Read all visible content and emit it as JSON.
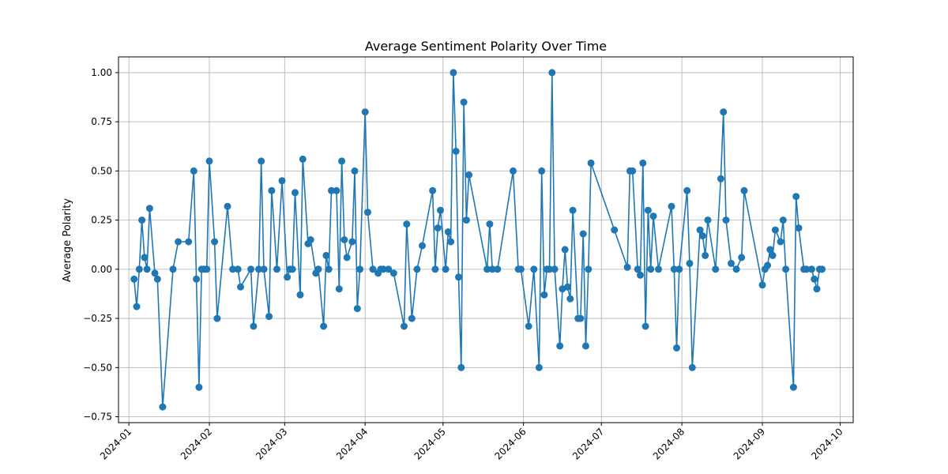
{
  "chart_data": {
    "type": "line",
    "title": "Average Sentiment Polarity Over Time",
    "xlabel": "",
    "ylabel": "Average Polarity",
    "xlim": [
      "2023-12-28",
      "2024-10-06"
    ],
    "ylim": [
      -0.78,
      1.08
    ],
    "x_ticks": [
      "2024-01",
      "2024-02",
      "2024-03",
      "2024-04",
      "2024-05",
      "2024-06",
      "2024-07",
      "2024-08",
      "2024-09",
      "2024-10"
    ],
    "y_ticks": [
      -0.75,
      -0.5,
      -0.25,
      0.0,
      0.25,
      0.5,
      0.75,
      1.0
    ],
    "y_tick_labels": [
      "−0.75",
      "−0.50",
      "−0.25",
      "0.00",
      "0.25",
      "0.50",
      "0.75",
      "1.00"
    ],
    "grid": true,
    "marker": "circle",
    "color": "#1f77b4",
    "x": [
      "2024-01-03",
      "2024-01-04",
      "2024-01-05",
      "2024-01-06",
      "2024-01-07",
      "2024-01-08",
      "2024-01-09",
      "2024-01-11",
      "2024-01-12",
      "2024-01-14",
      "2024-01-18",
      "2024-01-20",
      "2024-01-24",
      "2024-01-26",
      "2024-01-27",
      "2024-01-28",
      "2024-01-29",
      "2024-01-30",
      "2024-01-31",
      "2024-02-01",
      "2024-02-03",
      "2024-02-04",
      "2024-02-08",
      "2024-02-10",
      "2024-02-12",
      "2024-02-13",
      "2024-02-17",
      "2024-02-18",
      "2024-02-20",
      "2024-02-21",
      "2024-02-22",
      "2024-02-24",
      "2024-02-25",
      "2024-02-27",
      "2024-02-29",
      "2024-03-02",
      "2024-03-03",
      "2024-03-04",
      "2024-03-05",
      "2024-03-07",
      "2024-03-08",
      "2024-03-10",
      "2024-03-11",
      "2024-03-13",
      "2024-03-14",
      "2024-03-16",
      "2024-03-17",
      "2024-03-18",
      "2024-03-19",
      "2024-03-21",
      "2024-03-22",
      "2024-03-23",
      "2024-03-24",
      "2024-03-25",
      "2024-03-27",
      "2024-03-28",
      "2024-03-29",
      "2024-03-30",
      "2024-04-01",
      "2024-04-02",
      "2024-04-04",
      "2024-04-06",
      "2024-04-07",
      "2024-04-08",
      "2024-04-10",
      "2024-04-12",
      "2024-04-16",
      "2024-04-17",
      "2024-04-19",
      "2024-04-21",
      "2024-04-23",
      "2024-04-27",
      "2024-04-28",
      "2024-04-29",
      "2024-04-30",
      "2024-05-02",
      "2024-05-03",
      "2024-05-04",
      "2024-05-05",
      "2024-05-06",
      "2024-05-07",
      "2024-05-08",
      "2024-05-09",
      "2024-05-10",
      "2024-05-11",
      "2024-05-18",
      "2024-05-19",
      "2024-05-20",
      "2024-05-22",
      "2024-05-28",
      "2024-05-30",
      "2024-05-31",
      "2024-06-03",
      "2024-06-05",
      "2024-06-07",
      "2024-06-08",
      "2024-06-09",
      "2024-06-10",
      "2024-06-11",
      "2024-06-12",
      "2024-06-13",
      "2024-06-15",
      "2024-06-16",
      "2024-06-17",
      "2024-06-18",
      "2024-06-19",
      "2024-06-20",
      "2024-06-22",
      "2024-06-23",
      "2024-06-24",
      "2024-06-25",
      "2024-06-26",
      "2024-06-27",
      "2024-07-06",
      "2024-07-11",
      "2024-07-12",
      "2024-07-13",
      "2024-07-15",
      "2024-07-16",
      "2024-07-17",
      "2024-07-18",
      "2024-07-19",
      "2024-07-20",
      "2024-07-21",
      "2024-07-23",
      "2024-07-28",
      "2024-07-29",
      "2024-07-30",
      "2024-07-31",
      "2024-08-03",
      "2024-08-04",
      "2024-08-05",
      "2024-08-08",
      "2024-08-09",
      "2024-08-10",
      "2024-08-11",
      "2024-08-14",
      "2024-08-16",
      "2024-08-17",
      "2024-08-18",
      "2024-08-20",
      "2024-08-22",
      "2024-08-24",
      "2024-08-25",
      "2024-09-01",
      "2024-09-02",
      "2024-09-03",
      "2024-09-04",
      "2024-09-05",
      "2024-09-06",
      "2024-09-08",
      "2024-09-09",
      "2024-09-10",
      "2024-09-13",
      "2024-09-14",
      "2024-09-15",
      "2024-09-17",
      "2024-09-18",
      "2024-09-20",
      "2024-09-21",
      "2024-09-22",
      "2024-09-23",
      "2024-09-24"
    ],
    "values": [
      -0.05,
      -0.19,
      0.0,
      0.25,
      0.06,
      0.0,
      0.31,
      -0.02,
      -0.05,
      -0.7,
      0.0,
      0.14,
      0.14,
      0.5,
      -0.05,
      -0.6,
      0.0,
      0.0,
      0.0,
      0.55,
      0.14,
      -0.25,
      0.32,
      0.0,
      0.0,
      -0.09,
      0.0,
      -0.29,
      0.0,
      0.55,
      0.0,
      -0.24,
      0.4,
      0.0,
      0.45,
      -0.04,
      0.0,
      0.0,
      0.39,
      -0.13,
      0.56,
      0.13,
      0.15,
      -0.02,
      0.0,
      -0.29,
      0.07,
      0.0,
      0.4,
      0.4,
      -0.1,
      0.55,
      0.15,
      0.06,
      0.14,
      0.5,
      -0.2,
      0.0,
      0.8,
      0.29,
      0.0,
      -0.02,
      0.0,
      0.0,
      0.0,
      -0.02,
      -0.29,
      0.23,
      -0.25,
      0.0,
      0.12,
      0.4,
      0.0,
      0.21,
      0.3,
      0.0,
      0.19,
      0.14,
      1.0,
      0.6,
      -0.04,
      -0.5,
      0.85,
      0.25,
      0.48,
      0.0,
      0.23,
      0.0,
      0.0,
      0.5,
      0.0,
      0.0,
      -0.29,
      0.0,
      -0.5,
      0.5,
      -0.13,
      0.0,
      0.0,
      1.0,
      0.0,
      -0.39,
      -0.1,
      0.1,
      -0.09,
      -0.15,
      0.3,
      -0.25,
      -0.25,
      0.18,
      -0.39,
      0.0,
      0.54,
      0.2,
      0.01,
      0.5,
      0.5,
      0.0,
      -0.03,
      0.54,
      -0.29,
      0.3,
      0.0,
      0.27,
      0.0,
      0.32,
      0.0,
      -0.4,
      0.0,
      0.4,
      0.03,
      -0.5,
      0.2,
      0.17,
      0.07,
      0.25,
      0.0,
      0.46,
      0.8,
      0.25,
      0.03,
      0.0,
      0.06,
      0.4,
      -0.08,
      0.0,
      0.02,
      0.1,
      0.07,
      0.2,
      0.14,
      0.25,
      0.0,
      -0.6,
      0.37,
      0.21,
      0.0,
      0.0,
      0.0,
      -0.05,
      -0.1,
      0.0,
      0.0
    ]
  }
}
